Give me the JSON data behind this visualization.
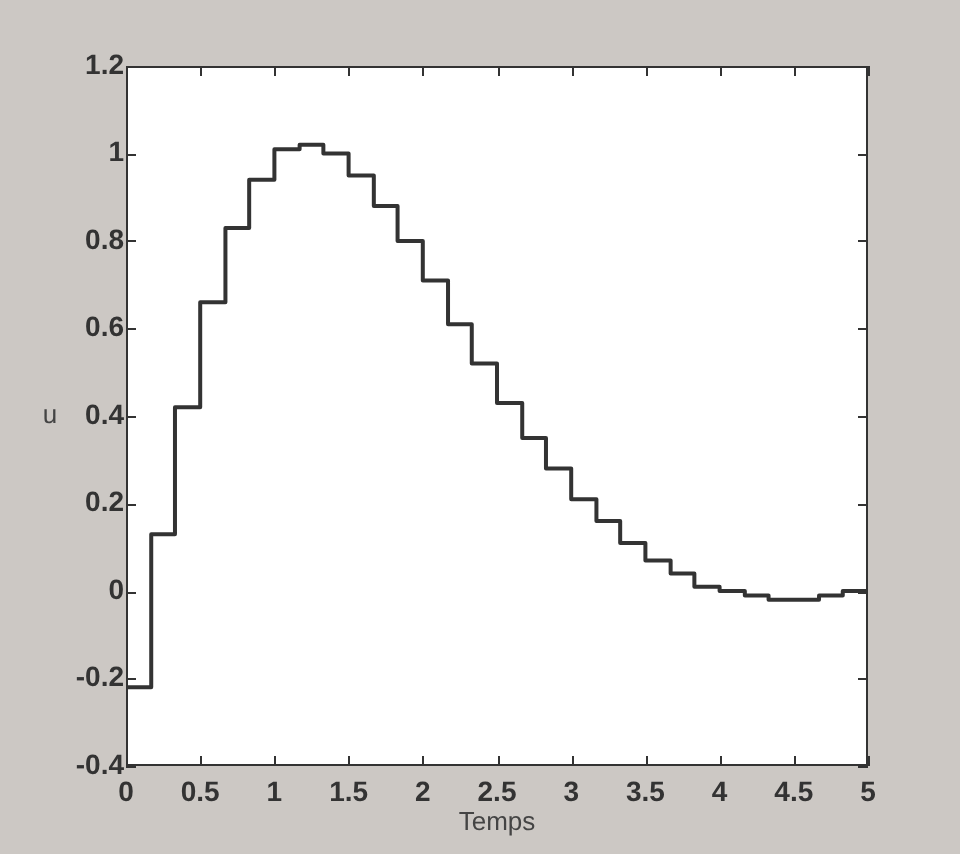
{
  "chart_data": {
    "type": "step",
    "xlabel": "Temps",
    "ylabel": "u",
    "x": [
      0,
      0.17,
      0.33,
      0.5,
      0.67,
      0.83,
      1,
      1.17,
      1.33,
      1.5,
      1.67,
      1.83,
      2,
      2.17,
      2.33,
      2.5,
      2.67,
      2.83,
      3,
      3.17,
      3.33,
      3.5,
      3.67,
      3.83,
      4,
      4.17,
      4.33,
      4.5,
      4.67,
      4.83,
      5
    ],
    "values": [
      -0.22,
      0.13,
      0.42,
      0.66,
      0.83,
      0.94,
      1.01,
      1.02,
      1.0,
      0.95,
      0.88,
      0.8,
      0.71,
      0.61,
      0.52,
      0.43,
      0.35,
      0.28,
      0.21,
      0.16,
      0.11,
      0.07,
      0.04,
      0.01,
      0,
      -0.01,
      -0.02,
      -0.02,
      -0.01,
      0,
      0
    ],
    "color": "#333333",
    "xlim": [
      0,
      5
    ],
    "ylim": [
      -0.4,
      1.2
    ],
    "xticks": [
      0,
      0.5,
      1,
      1.5,
      2,
      2.5,
      3,
      3.5,
      4,
      4.5,
      5
    ],
    "yticks": [
      -0.4,
      -0.2,
      0,
      0.2,
      0.4,
      0.6,
      0.8,
      1,
      1.2
    ]
  }
}
